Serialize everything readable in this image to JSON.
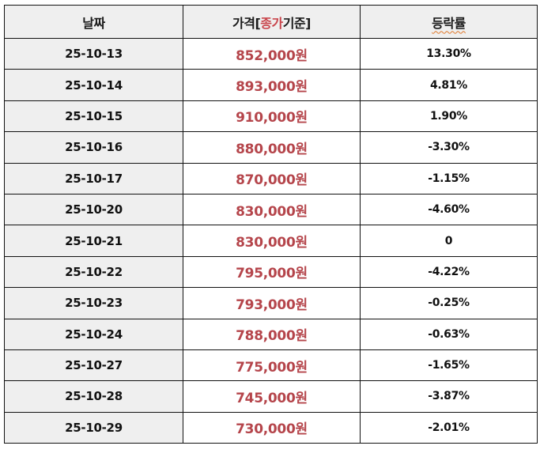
{
  "table": {
    "headers": {
      "date": "날짜",
      "price_prefix": "가격[",
      "price_highlight": "종가",
      "price_suffix": "기준]",
      "change": "등락률"
    },
    "colors": {
      "price_text": "#b5454b",
      "header_highlight": "#c9454c",
      "date_column_bg": "#efefef",
      "header_bg": "#efefef"
    },
    "rows": [
      {
        "date": "25-10-13",
        "price": "852,000원",
        "change": "13.30%"
      },
      {
        "date": "25-10-14",
        "price": "893,000원",
        "change": "4.81%"
      },
      {
        "date": "25-10-15",
        "price": "910,000원",
        "change": "1.90%"
      },
      {
        "date": "25-10-16",
        "price": "880,000원",
        "change": "-3.30%"
      },
      {
        "date": "25-10-17",
        "price": "870,000원",
        "change": "-1.15%"
      },
      {
        "date": "25-10-20",
        "price": "830,000원",
        "change": "-4.60%"
      },
      {
        "date": "25-10-21",
        "price": "830,000원",
        "change": "0"
      },
      {
        "date": "25-10-22",
        "price": "795,000원",
        "change": "-4.22%"
      },
      {
        "date": "25-10-23",
        "price": "793,000원",
        "change": "-0.25%"
      },
      {
        "date": "25-10-24",
        "price": "788,000원",
        "change": "-0.63%"
      },
      {
        "date": "25-10-27",
        "price": "775,000원",
        "change": "-1.65%"
      },
      {
        "date": "25-10-28",
        "price": "745,000원",
        "change": "-3.87%"
      },
      {
        "date": "25-10-29",
        "price": "730,000원",
        "change": "-2.01%"
      }
    ]
  }
}
